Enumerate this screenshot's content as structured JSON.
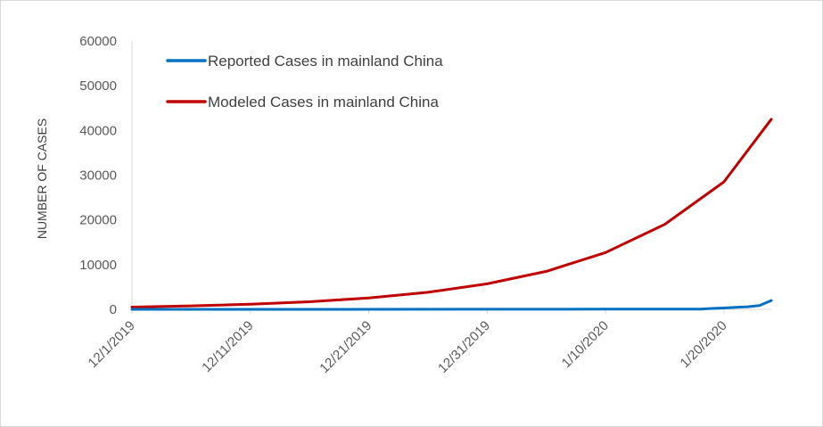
{
  "chart_data": {
    "type": "line",
    "ylabel": "NUMBER OF CASES",
    "xlabel": "",
    "title": "",
    "ylim": [
      0,
      60000
    ],
    "yticks": [
      "0",
      "10000",
      "20000",
      "30000",
      "40000",
      "50000",
      "60000"
    ],
    "xlim": [
      "2019-12-01",
      "2020-01-24"
    ],
    "xticks": [
      "12/1/2019",
      "12/11/2019",
      "12/21/2019",
      "12/31/2019",
      "1/10/2020",
      "1/20/2020"
    ],
    "legend_position": "top-left",
    "grid": false,
    "series": [
      {
        "name": "Reported Cases in mainland China",
        "color": "#0070C0",
        "x": [
          "2019-12-01",
          "2019-12-31",
          "2020-01-10",
          "2020-01-16",
          "2020-01-18",
          "2020-01-19",
          "2020-01-20",
          "2020-01-21",
          "2020-01-22",
          "2020-01-23",
          "2020-01-24"
        ],
        "values": [
          0,
          27,
          41,
          45,
          62,
          198,
          291,
          440,
          571,
          830,
          1975
        ]
      },
      {
        "name": "Modeled Cases in mainland China",
        "color": "#C00000",
        "x": [
          "2019-12-01",
          "2019-12-06",
          "2019-12-11",
          "2019-12-16",
          "2019-12-21",
          "2019-12-26",
          "2019-12-31",
          "2020-01-05",
          "2020-01-10",
          "2020-01-15",
          "2020-01-20",
          "2020-01-24"
        ],
        "values": [
          500,
          780,
          1150,
          1700,
          2550,
          3800,
          5700,
          8500,
          12700,
          19000,
          28500,
          42500
        ]
      }
    ]
  }
}
